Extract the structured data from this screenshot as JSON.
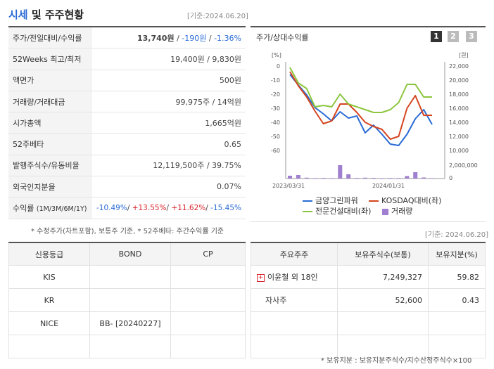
{
  "header": {
    "title_main": "시세",
    "title_rest": " 및 주주현황",
    "base_date": "[기준:2024.06.20]"
  },
  "stock_table": {
    "rows": [
      {
        "label": "주가/전일대비/수익률",
        "price": "13,740원",
        "sep1": " / ",
        "change": "-190원",
        "sep2": " / ",
        "rate": "-1.36%"
      },
      {
        "label": "52Weeks 최고/최저",
        "value": "19,400원 / 9,830원"
      },
      {
        "label": "액면가",
        "value": "500원"
      },
      {
        "label": "거래량/거래대금",
        "value": "99,975주 / 14억원"
      },
      {
        "label": "시가총액",
        "value": "1,665억원"
      },
      {
        "label": "52주베타",
        "value": "0.65"
      },
      {
        "label": "발행주식수/유동비율",
        "value": "12,119,500주 / 39.75%"
      },
      {
        "label": "외국인지분율",
        "value": "0.07%"
      },
      {
        "label": "수익률",
        "label_sub": "(1M/3M/6M/1Y)",
        "r1": "-10.49%",
        "r2": "+13.55%",
        "r3": "+11.62%",
        "r4": "-15.45%"
      }
    ],
    "note": "* 수정주가(차트포함), 보통주 기준, * 52주베타: 주간수익률 기준"
  },
  "chart_panel": {
    "title": "주가/상대수익률",
    "buttons": [
      "1",
      "2",
      "3"
    ],
    "left_unit": "[%]",
    "right_unit": "[원]",
    "base_date": "[기준: 2024.06.20]"
  },
  "chart_data": {
    "type": "line",
    "x_labels": [
      "2023/03/31",
      "2024/01/31"
    ],
    "left_axis": {
      "unit": "[%]",
      "ticks": [
        "0",
        "-10",
        "-20",
        "-30",
        "-40",
        "-50",
        "-60"
      ],
      "ylim": [
        -60,
        0
      ]
    },
    "right_axis": {
      "unit": "[원]",
      "ticks": [
        "22,000",
        "20,000",
        "18,000",
        "16,000",
        "14,000",
        "12,000",
        "10,000"
      ],
      "ylim": [
        10000,
        22000
      ]
    },
    "volume_axis": {
      "ticks": [
        "2,000,000",
        "0"
      ]
    },
    "series": [
      {
        "name": "금양그린파워",
        "color": "#2a6bd6",
        "axis": "right",
        "values": [
          20800,
          19300,
          17900,
          16100,
          15200,
          14200,
          15500,
          14600,
          14900,
          12500,
          13600,
          12300,
          10900,
          10700,
          12300,
          14500,
          15800,
          13700
        ]
      },
      {
        "name": "KOSDAQ대비(좌)",
        "color": "#d4451f",
        "axis": "left",
        "values": [
          -4,
          -14,
          -22,
          -32,
          -41,
          -39,
          -27,
          -27,
          -33,
          -40,
          -43,
          -45,
          -52,
          -50,
          -30,
          -21,
          -35,
          -35
        ]
      },
      {
        "name": "전문건설대비(좌)",
        "color": "#8cc63e",
        "axis": "left",
        "values": [
          -1,
          -12,
          -16,
          -29,
          -28,
          -29,
          -20,
          -27,
          -29,
          -31,
          -33,
          -33,
          -31,
          -26,
          -13,
          -13,
          -22,
          -22
        ]
      },
      {
        "name": "거래량",
        "color": "#a07fd0",
        "axis": "volume",
        "values": [
          400000,
          500000,
          120000,
          60000,
          80000,
          60000,
          1900000,
          600000,
          80000,
          120000,
          90000,
          60000,
          70000,
          70000,
          350000,
          900000,
          150000,
          40000
        ]
      }
    ]
  },
  "credit": {
    "headers": [
      "신용등급",
      "BOND",
      "CP"
    ],
    "rows": [
      [
        "KIS",
        "",
        ""
      ],
      [
        "KR",
        "",
        ""
      ],
      [
        "NICE",
        "BB-  [20240227]",
        ""
      ],
      [
        "",
        "",
        ""
      ]
    ]
  },
  "shareholders": {
    "headers": [
      "주요주주",
      "보유주식수(보통)",
      "보유지분(%)"
    ],
    "rows": [
      [
        "이윤철 외 18인",
        "7,249,327",
        "59.82"
      ],
      [
        "자사주",
        "52,600",
        "0.43"
      ],
      [
        "",
        "",
        ""
      ],
      [
        "",
        "",
        ""
      ]
    ],
    "note": "* 보유지분 : 보유지분주식수/지수산정주식수×100"
  }
}
